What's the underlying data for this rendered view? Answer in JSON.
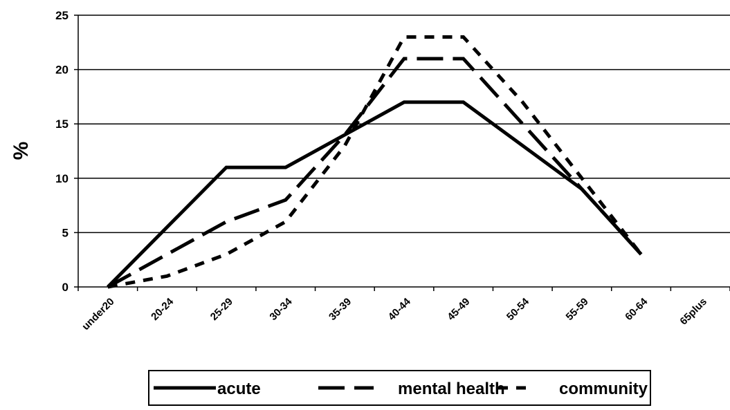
{
  "chart_data": {
    "type": "line",
    "y_label": "%",
    "categories": [
      "under20",
      "20-24",
      "25-29",
      "30-34",
      "35-39",
      "40-44",
      "45-49",
      "50-54",
      "55-59",
      "60-64",
      "65plus"
    ],
    "series": [
      {
        "name": "acute",
        "color": "#000000",
        "dash": "solid",
        "values": [
          0,
          5.5,
          11,
          11,
          14,
          17,
          17,
          13,
          9,
          3,
          null
        ]
      },
      {
        "name": "mental health",
        "color": "#000000",
        "dash": "long",
        "values": [
          0,
          3,
          6,
          8,
          14,
          21,
          21,
          15,
          9,
          3,
          null
        ]
      },
      {
        "name": "community",
        "color": "#000000",
        "dash": "short",
        "values": [
          0,
          1,
          3,
          6,
          13,
          23,
          23,
          17,
          10,
          3,
          null
        ]
      }
    ],
    "ylim": [
      0,
      25
    ],
    "yticks": [
      0,
      5,
      10,
      15,
      20,
      25
    ],
    "grid": true,
    "legend": "bottom"
  }
}
